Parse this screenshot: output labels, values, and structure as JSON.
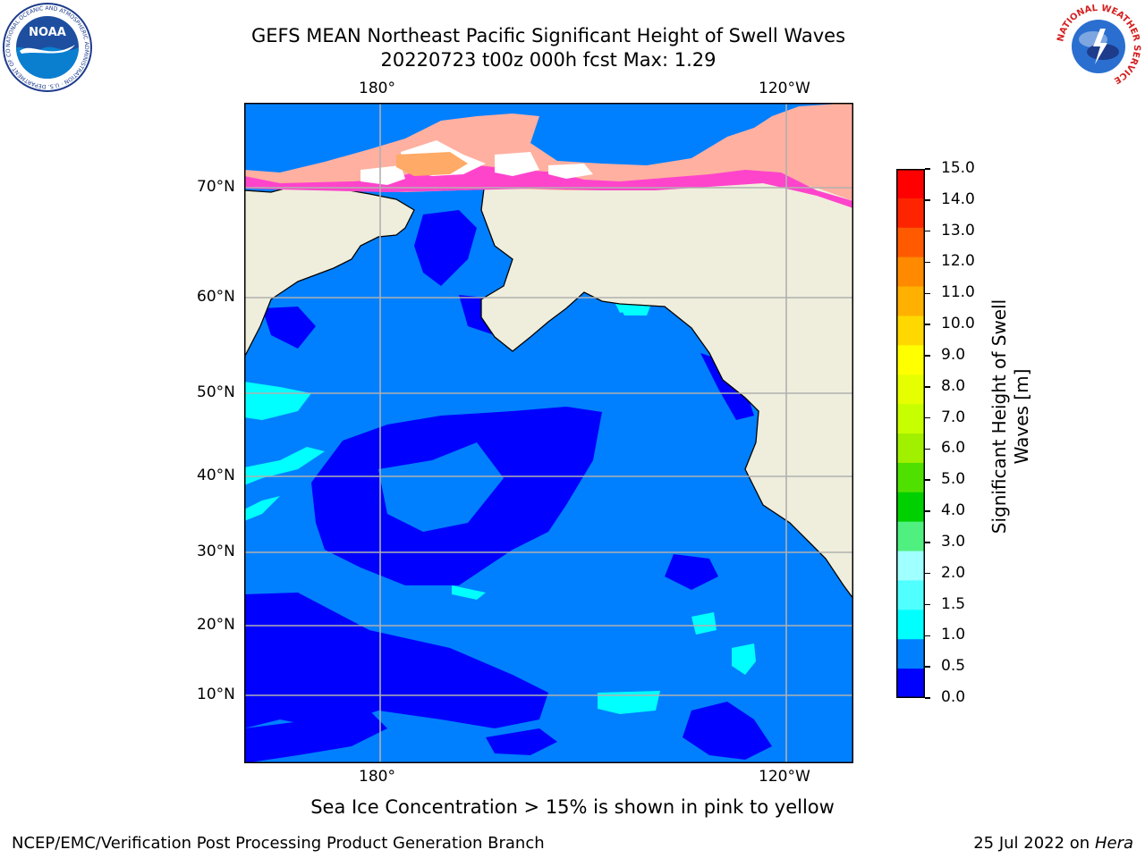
{
  "title": {
    "line1": "GEFS MEAN Northeast Pacific Significant Height of Swell Waves",
    "line2": "20220723 t00z 000h fcst   Max: 1.29"
  },
  "logos": {
    "left": "NOAA",
    "left_ring_text": "NATIONAL OCEANIC AND ATMOSPHERIC ADMINISTRATION · U.S. DEPARTMENT OF COMMERCE",
    "right_ring_text": "NATIONAL WEATHER SERVICE"
  },
  "map": {
    "top_lon_labels": [
      "180°",
      "120°W"
    ],
    "bottom_lon_labels": [
      "180°",
      "120°W"
    ],
    "lat_labels": [
      "70°N",
      "60°N",
      "50°N",
      "40°N",
      "30°N",
      "20°N",
      "10°N"
    ],
    "land_color": "#efeedc",
    "grid_color": "#b0b0b0"
  },
  "colorbar": {
    "title": "Significant Height of Swell Waves [m]",
    "title_line1": "Significant Height of Swell",
    "title_line2": "Waves [m]",
    "ticks": [
      "15.0",
      "14.0",
      "13.0",
      "12.0",
      "11.0",
      "10.0",
      "9.0",
      "8.0",
      "7.0",
      "6.0",
      "5.0",
      "4.0",
      "3.0",
      "2.0",
      "1.5",
      "1.0",
      "0.5",
      "0.0"
    ],
    "colors_top_to_bottom": [
      "#ff0000",
      "#ff2400",
      "#ff5a00",
      "#ff8a00",
      "#ffb000",
      "#ffd800",
      "#ffff00",
      "#e6ff00",
      "#c8ff00",
      "#a0f000",
      "#50e000",
      "#00d000",
      "#50f080",
      "#a0ffff",
      "#50ffff",
      "#00ffff",
      "#0080ff",
      "#0000ff"
    ]
  },
  "annotation": "Sea Ice Concentration > 15% is shown in pink to yellow",
  "footer": {
    "left": "NCEP/EMC/Verification Post Processing Product Generation Branch",
    "right_prefix": "25 Jul 2022 on ",
    "right_machine": "Hera"
  }
}
